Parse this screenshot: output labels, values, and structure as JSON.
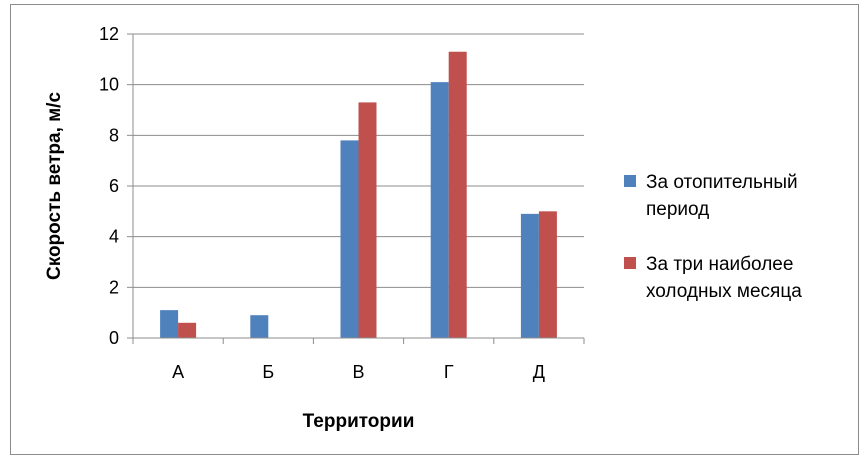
{
  "chart_data": {
    "type": "bar",
    "categories": [
      "А",
      "Б",
      "В",
      "Г",
      "Д"
    ],
    "series": [
      {
        "name_lines": [
          "За отопительный",
          "период"
        ],
        "color": "#4f81bd",
        "values": [
          1.1,
          0.9,
          7.8,
          10.1,
          4.9
        ]
      },
      {
        "name_lines": [
          "За три наиболее",
          "холодных месяца"
        ],
        "color": "#c0504d",
        "values": [
          0.6,
          0.0,
          9.3,
          11.3,
          5.0
        ]
      }
    ],
    "xlabel": "Территории",
    "ylabel": "Скорость ветра, м/с",
    "ylim": [
      0,
      12
    ],
    "yticks": [
      0,
      2,
      4,
      6,
      8,
      10,
      12
    ],
    "grid": true,
    "legend_position": "right"
  }
}
